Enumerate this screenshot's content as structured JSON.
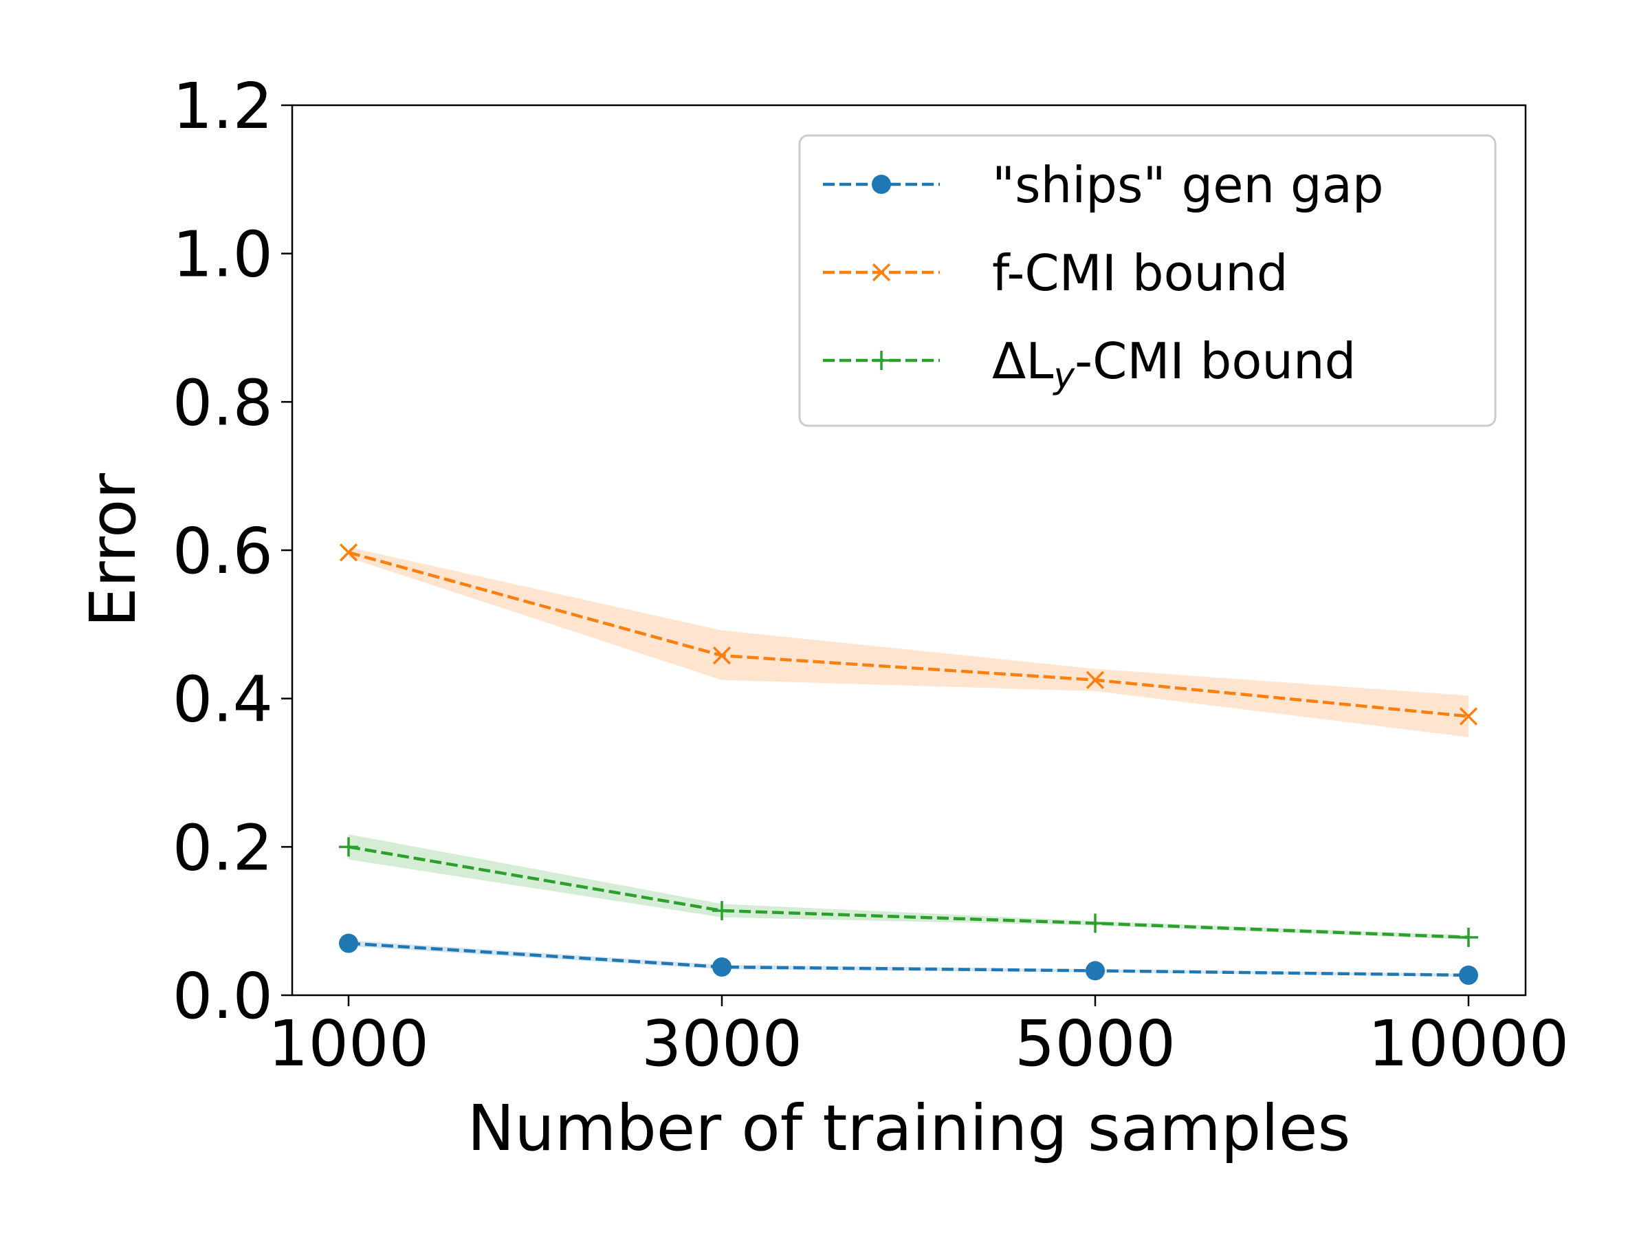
{
  "chart_data": {
    "type": "line",
    "title": "",
    "xlabel": "Number of training samples",
    "ylabel": "Error",
    "categories": [
      "1000",
      "3000",
      "5000",
      "10000"
    ],
    "ylim": [
      0.0,
      1.2
    ],
    "yticks": [
      0.0,
      0.2,
      0.4,
      0.6,
      0.8,
      1.0,
      1.2
    ],
    "ytick_labels": [
      "0.0",
      "0.2",
      "0.4",
      "0.6",
      "0.8",
      "1.0",
      "1.2"
    ],
    "grid": false,
    "legend_position": "top-right",
    "series": [
      {
        "name": "\"ships\" gen gap",
        "color": "#1f77b4",
        "marker": "circle",
        "linestyle": "dashed",
        "values": [
          0.07,
          0.038,
          0.033,
          0.027
        ],
        "band_low": [
          0.066,
          0.035,
          0.031,
          0.025
        ],
        "band_high": [
          0.074,
          0.041,
          0.035,
          0.029
        ]
      },
      {
        "name": "f-CMI bound",
        "color": "#ff7f0e",
        "marker": "x",
        "linestyle": "dashed",
        "values": [
          0.597,
          0.458,
          0.425,
          0.376
        ],
        "band_low": [
          0.59,
          0.425,
          0.41,
          0.348
        ],
        "band_high": [
          0.604,
          0.492,
          0.44,
          0.404
        ]
      },
      {
        "name": "ΔL_y-CMI bound",
        "legend_main": "ΔL",
        "legend_sub": "y",
        "legend_rest": "-CMI bound",
        "color": "#2ca02c",
        "marker": "plus",
        "linestyle": "dashed",
        "values": [
          0.2,
          0.114,
          0.097,
          0.078
        ],
        "band_low": [
          0.183,
          0.105,
          0.094,
          0.075
        ],
        "band_high": [
          0.217,
          0.123,
          0.1,
          0.081
        ]
      }
    ]
  }
}
